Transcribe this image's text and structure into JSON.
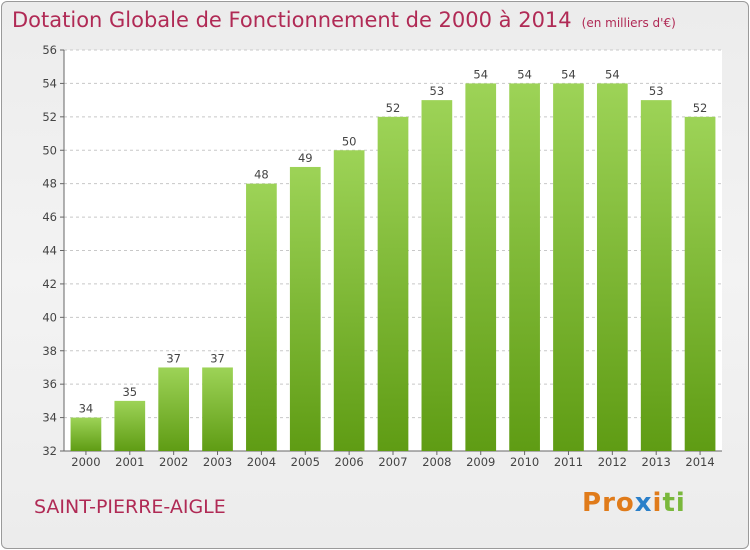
{
  "header": {
    "title": "Dotation Globale de Fonctionnement de 2000 à 2014",
    "subtitle": "(en milliers d'€)"
  },
  "footer": {
    "town": "SAINT-PIERRE-AIGLE",
    "logo_letters": [
      "P",
      "r",
      "o",
      "x",
      "i",
      "t",
      "i"
    ]
  },
  "colors": {
    "title": "#b02a55",
    "bar_top": "#9dd357",
    "bar_bottom": "#5f9c14",
    "grid": "#c8c8c8",
    "logo": [
      "#e07b1a",
      "#e07b1a",
      "#e07b1a",
      "#2a7fc9",
      "#e07b1a",
      "#7ab83c",
      "#7ab83c"
    ]
  },
  "chart_data": {
    "type": "bar",
    "title": "Dotation Globale de Fonctionnement de 2000 à 2014",
    "xlabel": "",
    "ylabel": "",
    "categories": [
      "2000",
      "2001",
      "2002",
      "2003",
      "2004",
      "2005",
      "2006",
      "2007",
      "2008",
      "2009",
      "2010",
      "2011",
      "2012",
      "2013",
      "2014"
    ],
    "values": [
      34,
      35,
      37,
      37,
      48,
      49,
      50,
      52,
      53,
      54,
      54,
      54,
      54,
      53,
      52
    ],
    "ylim": [
      32,
      56
    ],
    "yticks": [
      32,
      34,
      36,
      38,
      40,
      42,
      44,
      46,
      48,
      50,
      52,
      54,
      56
    ],
    "grid": true
  }
}
